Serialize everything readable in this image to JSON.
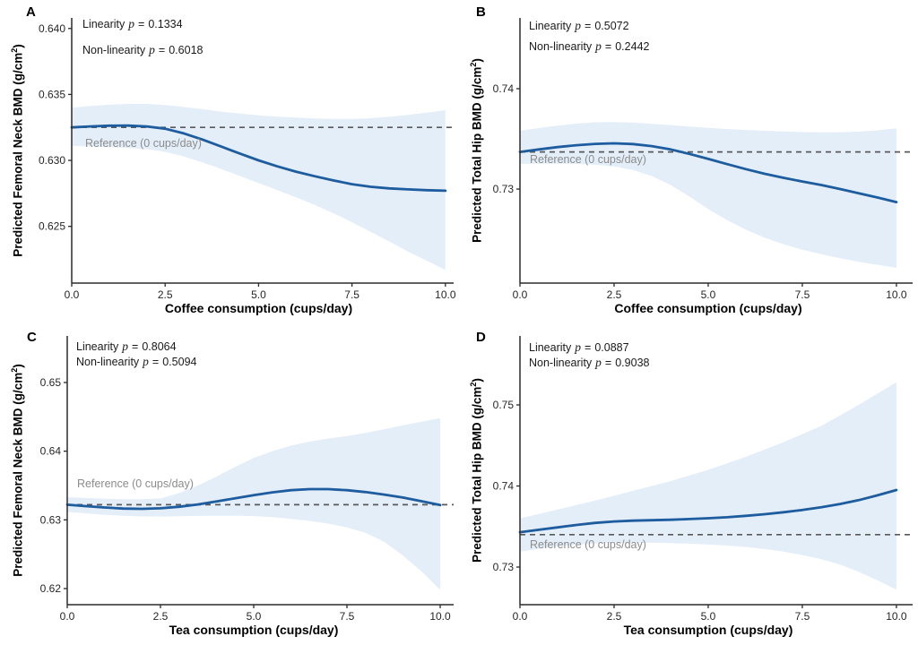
{
  "shared": {
    "p_symbol": "p",
    "equals": "=",
    "sup_exponent": "2",
    "paren_close": ")"
  },
  "colors": {
    "trend_line": "#1d5c9e",
    "confidence_band": "#e4eef9",
    "reference_line": "#595959",
    "reference_label": "#8c8c8c",
    "axis": "#2b2b2b",
    "tick_text": "#262626"
  },
  "x_values": [
    0,
    0.5,
    1,
    1.5,
    2,
    2.5,
    3,
    3.5,
    4,
    4.5,
    5,
    5.5,
    6,
    6.5,
    7,
    7.5,
    8,
    8.5,
    9,
    9.5,
    10
  ],
  "chart_data": [
    {
      "type": "line",
      "panel_label": "A",
      "xlabel": "Coffee consumption (cups/day)",
      "ylabel_main": "Predicted Femoral Neck BMD (g/cm",
      "linearity_label": "Linearity",
      "linearity_p": "0.1334",
      "nonlinearity_label": "Non-linearity",
      "nonlinearity_p": "0.6018",
      "reference_label": "Reference (0 cups/day)",
      "reference_value": 0.6325,
      "xlim": [
        0,
        10.22
      ],
      "ylim": [
        0.6207,
        0.6408
      ],
      "x_ticks": [
        {
          "v": 0,
          "label": "0.0"
        },
        {
          "v": 2.5,
          "label": "2.5"
        },
        {
          "v": 5,
          "label": "5.0"
        },
        {
          "v": 7.5,
          "label": "7.5"
        },
        {
          "v": 10,
          "label": "10.0"
        }
      ],
      "y_ticks": [
        {
          "v": 0.625,
          "label": "0.625"
        },
        {
          "v": 0.63,
          "label": "0.630"
        },
        {
          "v": 0.635,
          "label": "0.635"
        },
        {
          "v": 0.64,
          "label": "0.640"
        }
      ],
      "series": [
        {
          "name": "predicted",
          "values": [
            0.6325,
            0.63258,
            0.63263,
            0.63264,
            0.63258,
            0.6324,
            0.63205,
            0.63158,
            0.63105,
            0.63052,
            0.63,
            0.62955,
            0.62915,
            0.6288,
            0.62848,
            0.6282,
            0.628,
            0.62788,
            0.6278,
            0.62774,
            0.6277
          ]
        },
        {
          "name": "ci_upper",
          "values": [
            0.634,
            0.63412,
            0.63422,
            0.63428,
            0.63428,
            0.6342,
            0.63405,
            0.63388,
            0.6337,
            0.63355,
            0.63342,
            0.63332,
            0.63324,
            0.63318,
            0.63315,
            0.63315,
            0.6332,
            0.6333,
            0.63345,
            0.63362,
            0.6338
          ]
        },
        {
          "name": "ci_lower",
          "values": [
            0.6311,
            0.63105,
            0.631,
            0.63095,
            0.63085,
            0.63065,
            0.6303,
            0.62985,
            0.62935,
            0.62882,
            0.62828,
            0.62775,
            0.6272,
            0.62662,
            0.626,
            0.62532,
            0.62458,
            0.62385,
            0.6231,
            0.6224,
            0.6217
          ]
        }
      ]
    },
    {
      "type": "line",
      "panel_label": "B",
      "xlabel": "Coffee consumption (cups/day)",
      "ylabel_main": "Predicted Total Hip BMD (g/cm",
      "linearity_label": "Linearity",
      "linearity_p": "0.5072",
      "nonlinearity_label": "Non-linearity",
      "nonlinearity_p": "0.2442",
      "reference_label": "Reference (0 cups/day)",
      "reference_value": 0.7337,
      "xlim": [
        0,
        10.43
      ],
      "ylim": [
        0.72063,
        0.74705
      ],
      "x_ticks": [
        {
          "v": 0,
          "label": "0.0"
        },
        {
          "v": 2.5,
          "label": "2.5"
        },
        {
          "v": 5,
          "label": "5.0"
        },
        {
          "v": 7.5,
          "label": "7.5"
        },
        {
          "v": 10,
          "label": "10.0"
        }
      ],
      "y_ticks": [
        {
          "v": 0.73,
          "label": "0.73"
        },
        {
          "v": 0.74,
          "label": "0.74"
        }
      ],
      "series": [
        {
          "name": "predicted",
          "values": [
            0.7337,
            0.73395,
            0.73418,
            0.73437,
            0.7345,
            0.73455,
            0.73448,
            0.73428,
            0.73395,
            0.7335,
            0.733,
            0.73248,
            0.73198,
            0.73152,
            0.73112,
            0.73075,
            0.7304,
            0.73,
            0.72958,
            0.72915,
            0.7287
          ]
        },
        {
          "name": "ci_upper",
          "values": [
            0.7358,
            0.73608,
            0.73632,
            0.73652,
            0.73665,
            0.73668,
            0.73662,
            0.7365,
            0.73636,
            0.73622,
            0.7361,
            0.73598,
            0.73588,
            0.7358,
            0.73573,
            0.73568,
            0.73565,
            0.73566,
            0.73572,
            0.73585,
            0.73605
          ]
        },
        {
          "name": "ci_lower",
          "values": [
            0.7325,
            0.73252,
            0.73252,
            0.7325,
            0.73242,
            0.73225,
            0.7319,
            0.7313,
            0.7304,
            0.72925,
            0.728,
            0.7269,
            0.72595,
            0.72515,
            0.7245,
            0.72395,
            0.7235,
            0.7231,
            0.72275,
            0.72245,
            0.72215
          ]
        }
      ]
    },
    {
      "type": "line",
      "panel_label": "C",
      "xlabel": "Tea consumption (cups/day)",
      "ylabel_main": "Predicted Femoral Neck BMD (g/cm",
      "linearity_label": "Linearity",
      "linearity_p": "0.8064",
      "nonlinearity_label": "Non-linearity",
      "nonlinearity_p": "0.5094",
      "reference_label": "Reference (0 cups/day)",
      "reference_value": 0.6322,
      "xlim": [
        0,
        10.36
      ],
      "ylim": [
        0.61765,
        0.65678
      ],
      "x_ticks": [
        {
          "v": 0,
          "label": "0.0"
        },
        {
          "v": 2.5,
          "label": "2.5"
        },
        {
          "v": 5,
          "label": "5.0"
        },
        {
          "v": 7.5,
          "label": "7.5"
        },
        {
          "v": 10,
          "label": "10.0"
        }
      ],
      "y_ticks": [
        {
          "v": 0.62,
          "label": "0.62"
        },
        {
          "v": 0.63,
          "label": "0.63"
        },
        {
          "v": 0.64,
          "label": "0.64"
        },
        {
          "v": 0.65,
          "label": "0.65"
        }
      ],
      "series": [
        {
          "name": "predicted",
          "values": [
            0.6322,
            0.632,
            0.6318,
            0.63165,
            0.6316,
            0.63168,
            0.6319,
            0.63225,
            0.63268,
            0.63315,
            0.6336,
            0.634,
            0.63432,
            0.63448,
            0.63448,
            0.63432,
            0.63405,
            0.63368,
            0.63325,
            0.63272,
            0.63215
          ]
        },
        {
          "name": "ci_upper",
          "values": [
            0.6333,
            0.63318,
            0.63308,
            0.63302,
            0.633,
            0.63312,
            0.6339,
            0.635,
            0.6363,
            0.6377,
            0.639,
            0.64,
            0.6408,
            0.6414,
            0.64185,
            0.6422,
            0.64265,
            0.6432,
            0.64375,
            0.64428,
            0.6448
          ]
        },
        {
          "name": "ci_lower",
          "values": [
            0.63115,
            0.63095,
            0.63075,
            0.6306,
            0.6305,
            0.63048,
            0.63052,
            0.63058,
            0.63062,
            0.63062,
            0.63055,
            0.6304,
            0.63015,
            0.62985,
            0.62945,
            0.6289,
            0.6281,
            0.6268,
            0.6248,
            0.6225,
            0.6198
          ]
        }
      ]
    },
    {
      "type": "line",
      "panel_label": "D",
      "xlabel": "Tea consumption (cups/day)",
      "ylabel_main": "Predicted Total Hip BMD (g/cm",
      "linearity_label": "Linearity",
      "linearity_p": "0.0887",
      "nonlinearity_label": "Non-linearity",
      "nonlinearity_p": "0.9038",
      "reference_label": "Reference (0 cups/day)",
      "reference_value": 0.734,
      "xlim": [
        0,
        10.43
      ],
      "ylim": [
        0.72536,
        0.75851
      ],
      "x_ticks": [
        {
          "v": 0,
          "label": "0.0"
        },
        {
          "v": 2.5,
          "label": "2.5"
        },
        {
          "v": 5,
          "label": "5.0"
        },
        {
          "v": 7.5,
          "label": "7.5"
        },
        {
          "v": 10,
          "label": "10.0"
        }
      ],
      "y_ticks": [
        {
          "v": 0.73,
          "label": "0.73"
        },
        {
          "v": 0.74,
          "label": "0.74"
        },
        {
          "v": 0.75,
          "label": "0.75"
        }
      ],
      "series": [
        {
          "name": "predicted",
          "values": [
            0.7343,
            0.7346,
            0.7349,
            0.7352,
            0.73545,
            0.73562,
            0.73572,
            0.73578,
            0.73584,
            0.73592,
            0.73602,
            0.73615,
            0.73632,
            0.73652,
            0.73676,
            0.73704,
            0.73738,
            0.73778,
            0.73825,
            0.73885,
            0.7395
          ]
        },
        {
          "name": "ci_upper",
          "values": [
            0.736,
            0.73655,
            0.7371,
            0.73765,
            0.7382,
            0.7388,
            0.7394,
            0.74,
            0.7406,
            0.7413,
            0.742,
            0.7428,
            0.7436,
            0.7445,
            0.7454,
            0.7464,
            0.7474,
            0.7487,
            0.75,
            0.7514,
            0.7528
          ]
        },
        {
          "name": "ci_lower",
          "values": [
            0.7319,
            0.73225,
            0.73255,
            0.73278,
            0.73292,
            0.733,
            0.73302,
            0.733,
            0.73295,
            0.73288,
            0.73278,
            0.73265,
            0.73248,
            0.73222,
            0.7319,
            0.73148,
            0.73096,
            0.73032,
            0.7294,
            0.72835,
            0.7272
          ]
        }
      ]
    }
  ]
}
